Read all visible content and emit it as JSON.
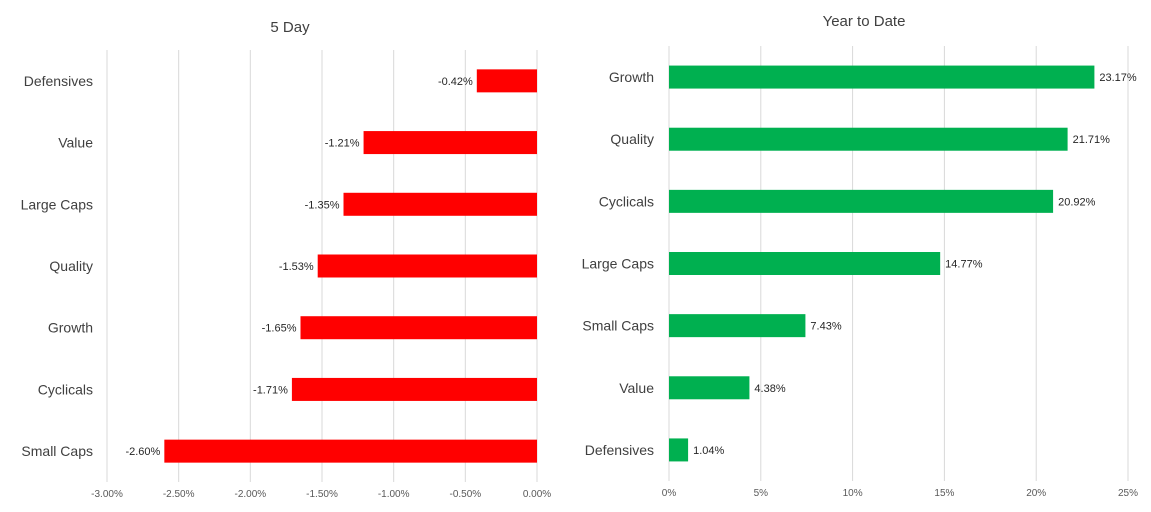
{
  "chart_data": [
    {
      "type": "bar",
      "orientation": "horizontal",
      "title": "5 Day",
      "categories": [
        "Defensives",
        "Value",
        "Large Caps",
        "Quality",
        "Growth",
        "Cyclicals",
        "Small Caps"
      ],
      "values": [
        -0.42,
        -1.21,
        -1.35,
        -1.53,
        -1.65,
        -1.71,
        -2.6
      ],
      "data_labels": [
        "-0.42%",
        "-1.21%",
        "-1.35%",
        "-1.53%",
        "-1.65%",
        "-1.71%",
        "-2.60%"
      ],
      "xlim": [
        -3.0,
        0.0
      ],
      "xticks": [
        -3.0,
        -2.5,
        -2.0,
        -1.5,
        -1.0,
        -0.5,
        0.0
      ],
      "xtick_labels": [
        "-3.00%",
        "-2.50%",
        "-2.00%",
        "-1.50%",
        "-1.00%",
        "-0.50%",
        "0.00%"
      ],
      "xlabel": "",
      "ylabel": "",
      "grid": "vertical",
      "color": "#ff0000"
    },
    {
      "type": "bar",
      "orientation": "horizontal",
      "title": "Year to Date",
      "categories": [
        "Growth",
        "Quality",
        "Cyclicals",
        "Large Caps",
        "Small Caps",
        "Value",
        "Defensives"
      ],
      "values": [
        23.17,
        21.71,
        20.92,
        14.77,
        7.43,
        4.38,
        1.04
      ],
      "data_labels": [
        "23.17%",
        "21.71%",
        "20.92%",
        "14.77%",
        "7.43%",
        "4.38%",
        "1.04%"
      ],
      "xlim": [
        0,
        25
      ],
      "xticks": [
        0,
        5,
        10,
        15,
        20,
        25
      ],
      "xtick_labels": [
        "0%",
        "5%",
        "10%",
        "15%",
        "20%",
        "25%"
      ],
      "xlabel": "",
      "ylabel": "",
      "grid": "vertical",
      "color": "#00b050"
    }
  ]
}
